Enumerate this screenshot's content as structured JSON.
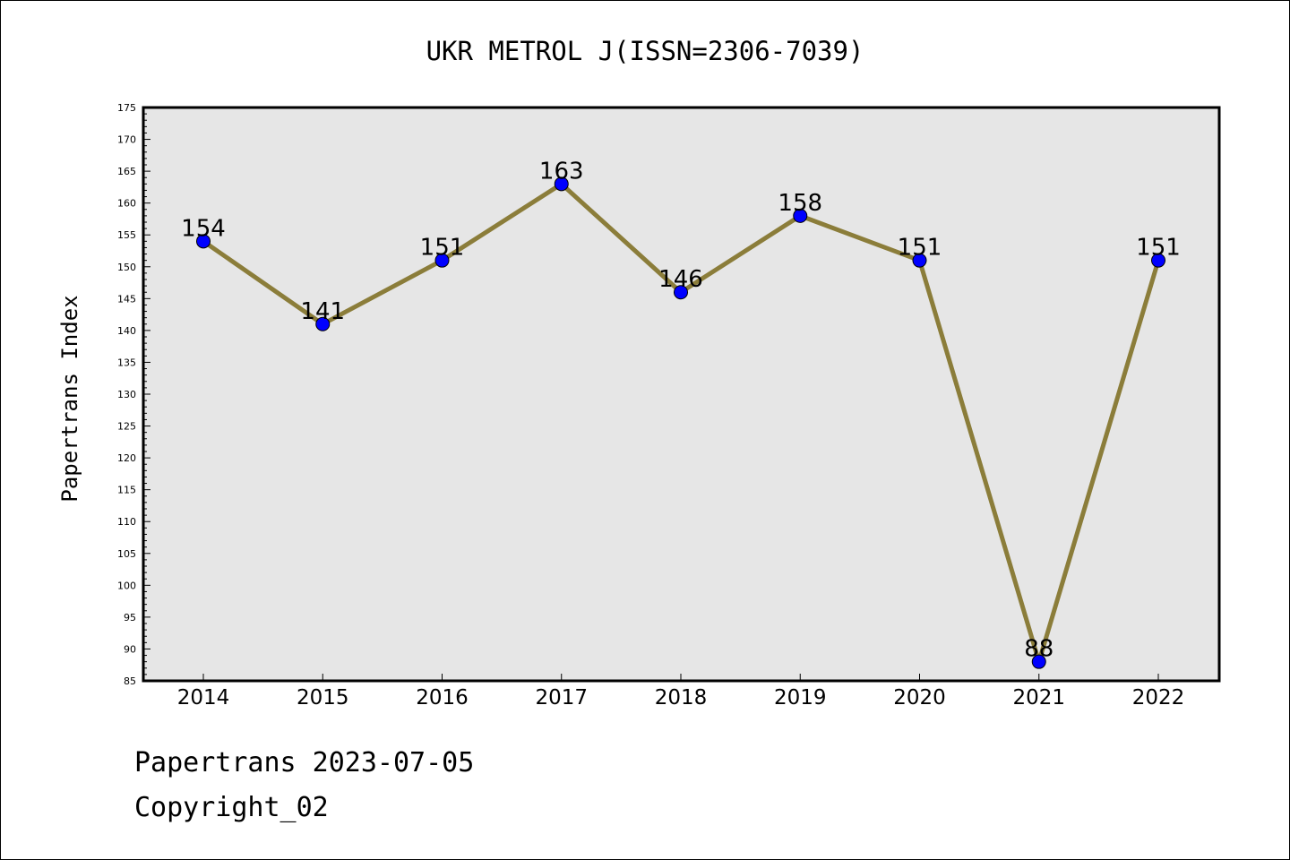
{
  "chart_data": {
    "type": "line",
    "title": "UKR METROL J(ISSN=2306-7039)",
    "xlabel": "",
    "ylabel": "Papertrans Index",
    "categories": [
      "2014",
      "2015",
      "2016",
      "2017",
      "2018",
      "2019",
      "2020",
      "2021",
      "2022"
    ],
    "values": [
      154,
      141,
      151,
      163,
      146,
      158,
      151,
      88,
      151
    ],
    "ylim": [
      85,
      175
    ],
    "ytick_step": 5,
    "grid": false,
    "data_labels": true,
    "colors": {
      "line": "#8b7d3a",
      "marker": "#0000ff",
      "plot_background": "#e6e6e6"
    }
  },
  "footer": {
    "line1": "Papertrans 2023-07-05",
    "line2": "Copyright_02"
  }
}
